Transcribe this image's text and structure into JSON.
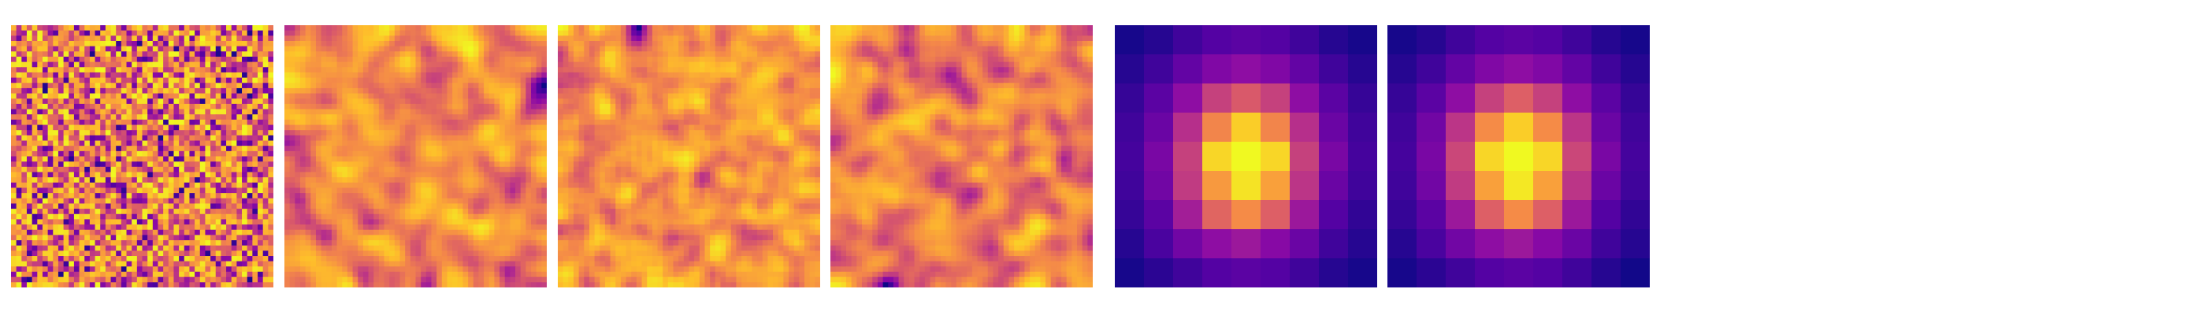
{
  "figure": {
    "colormap": "plasma",
    "panels": [
      {
        "kind": "noise-field",
        "grid": 50,
        "smoothness": 0
      },
      {
        "kind": "noise-field",
        "grid": 50,
        "smoothness": 3
      },
      {
        "kind": "noise-field",
        "grid": 50,
        "smoothness": 2
      },
      {
        "kind": "noise-field",
        "grid": 50,
        "smoothness": 3
      },
      {
        "kind": "heatmap",
        "grid": 9,
        "values": [
          [
            0.02,
            0.05,
            0.1,
            0.14,
            0.16,
            0.14,
            0.1,
            0.05,
            0.02
          ],
          [
            0.05,
            0.1,
            0.18,
            0.26,
            0.3,
            0.26,
            0.18,
            0.1,
            0.05
          ],
          [
            0.08,
            0.16,
            0.3,
            0.48,
            0.56,
            0.48,
            0.3,
            0.16,
            0.08
          ],
          [
            0.1,
            0.2,
            0.42,
            0.7,
            0.9,
            0.7,
            0.42,
            0.2,
            0.1
          ],
          [
            0.11,
            0.24,
            0.48,
            0.92,
            1.0,
            0.92,
            0.48,
            0.24,
            0.11
          ],
          [
            0.1,
            0.22,
            0.46,
            0.76,
            0.95,
            0.78,
            0.44,
            0.2,
            0.1
          ],
          [
            0.08,
            0.16,
            0.36,
            0.6,
            0.72,
            0.58,
            0.34,
            0.14,
            0.07
          ],
          [
            0.05,
            0.12,
            0.22,
            0.3,
            0.34,
            0.28,
            0.2,
            0.1,
            0.05
          ],
          [
            0.02,
            0.06,
            0.1,
            0.14,
            0.16,
            0.14,
            0.1,
            0.05,
            0.02
          ]
        ]
      },
      {
        "kind": "heatmap",
        "grid": 9,
        "values": [
          [
            0.02,
            0.05,
            0.1,
            0.14,
            0.16,
            0.14,
            0.1,
            0.05,
            0.02
          ],
          [
            0.05,
            0.1,
            0.18,
            0.26,
            0.3,
            0.26,
            0.18,
            0.1,
            0.05
          ],
          [
            0.08,
            0.16,
            0.3,
            0.48,
            0.58,
            0.48,
            0.3,
            0.16,
            0.08
          ],
          [
            0.1,
            0.22,
            0.44,
            0.72,
            0.9,
            0.72,
            0.44,
            0.2,
            0.1
          ],
          [
            0.11,
            0.24,
            0.5,
            0.92,
            1.0,
            0.92,
            0.5,
            0.24,
            0.11
          ],
          [
            0.1,
            0.22,
            0.46,
            0.78,
            0.96,
            0.78,
            0.44,
            0.2,
            0.1
          ],
          [
            0.08,
            0.16,
            0.34,
            0.58,
            0.72,
            0.58,
            0.34,
            0.14,
            0.07
          ],
          [
            0.05,
            0.12,
            0.22,
            0.3,
            0.34,
            0.28,
            0.2,
            0.1,
            0.05
          ],
          [
            0.02,
            0.06,
            0.1,
            0.14,
            0.16,
            0.14,
            0.1,
            0.05,
            0.01
          ]
        ]
      }
    ]
  }
}
